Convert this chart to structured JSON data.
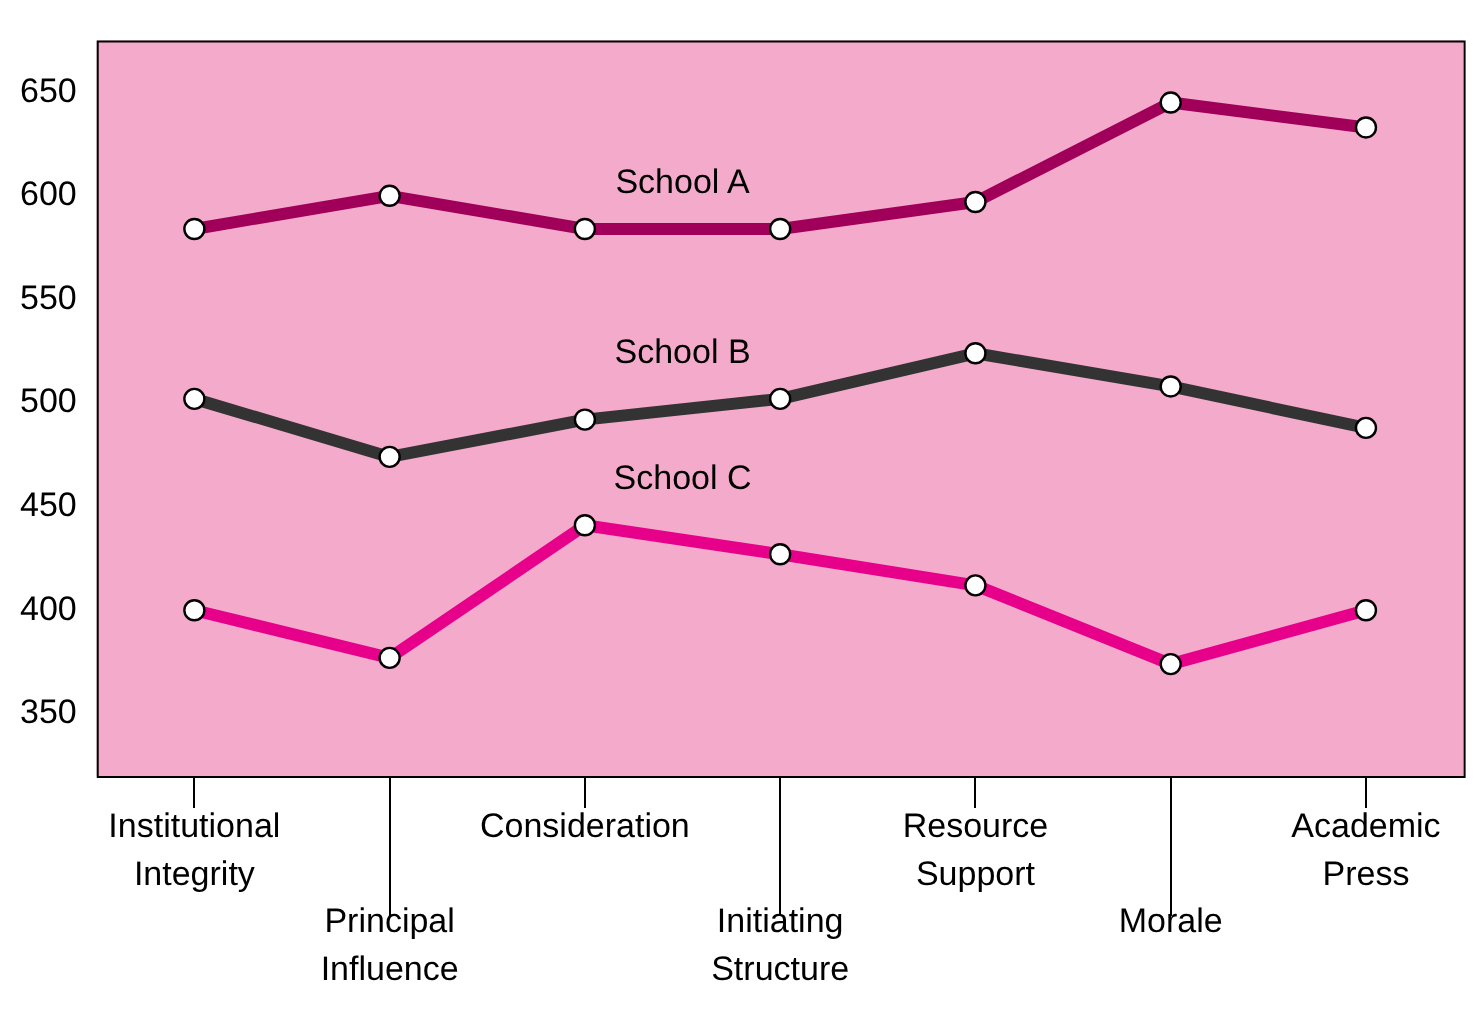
{
  "chart_data": {
    "type": "line",
    "categories": [
      "Institutional Integrity",
      "Principal Influence",
      "Consideration",
      "Initiating Structure",
      "Resource Support",
      "Morale",
      "Academic Press"
    ],
    "series": [
      {
        "name": "School A",
        "color": "#a0005a",
        "values": [
          584,
          600,
          584,
          584,
          597,
          645,
          633
        ]
      },
      {
        "name": "School B",
        "color": "#333333",
        "values": [
          502,
          474,
          492,
          502,
          524,
          508,
          488
        ]
      },
      {
        "name": "School C",
        "color": "#e6008a",
        "values": [
          400,
          377,
          441,
          427,
          412,
          374,
          400
        ]
      }
    ],
    "ylim": [
      320,
      675
    ],
    "yticks": [
      350,
      400,
      450,
      500,
      550,
      600,
      650
    ],
    "grid": false,
    "legend": false,
    "marker": "circle",
    "line_style": "solid"
  }
}
